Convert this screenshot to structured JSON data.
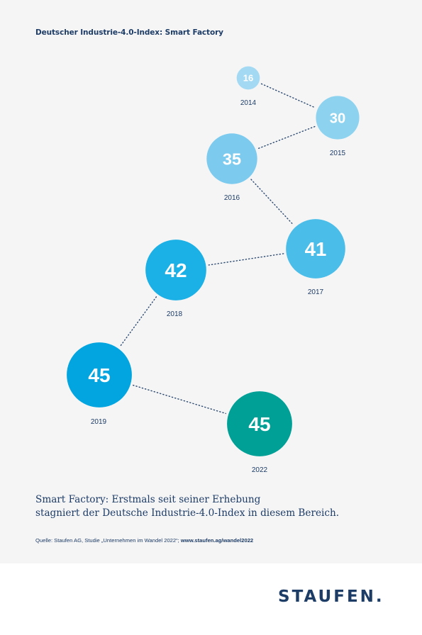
{
  "title": "Deutscher Industrie-4.0-Index: Smart Factory",
  "chart_data": {
    "type": "scatter",
    "title": "Deutscher Industrie-4.0-Index: Smart Factory",
    "points": [
      {
        "year": "2014",
        "value": 16,
        "color": "#a3d9f2"
      },
      {
        "year": "2015",
        "value": 30,
        "color": "#8dd3f0"
      },
      {
        "year": "2016",
        "value": 35,
        "color": "#7ccbee"
      },
      {
        "year": "2017",
        "value": 41,
        "color": "#4bbde9"
      },
      {
        "year": "2018",
        "value": 42,
        "color": "#1bb0e6"
      },
      {
        "year": "2019",
        "value": 45,
        "color": "#02a5df"
      },
      {
        "year": "2022",
        "value": 45,
        "color": "#00a096"
      }
    ],
    "connector": "dotted"
  },
  "caption": {
    "line1": "Smart Factory: Erstmals seit seiner Erhebung",
    "line2": "stagniert der Deutsche Industrie-4.0-Index in diesem Bereich."
  },
  "source": {
    "text": "Quelle: Staufen AG, Studie „Unternehmen im Wandel 2022“; ",
    "link": "www.staufen.ag/wandel2022"
  },
  "logo": "STAUFEN."
}
